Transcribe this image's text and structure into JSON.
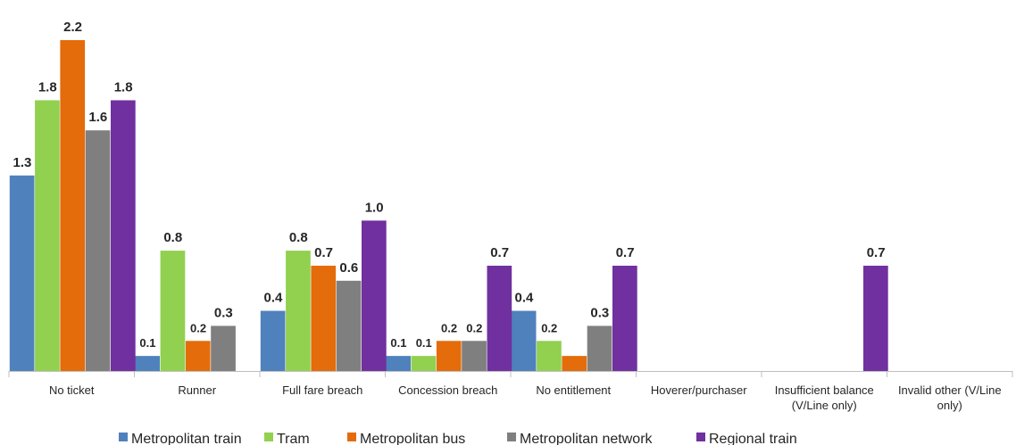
{
  "chart_data": {
    "type": "bar",
    "categories": [
      "No ticket",
      "Runner",
      "Full fare breach",
      "Concession breach",
      "No entitlement",
      "Hoverer/purchaser",
      "Insufficient balance (V/Line only)",
      "Invalid other (V/Line only)"
    ],
    "category_lines": [
      [
        "No ticket"
      ],
      [
        "Runner"
      ],
      [
        "Full fare breach"
      ],
      [
        "Concession breach"
      ],
      [
        "No entitlement"
      ],
      [
        "Hoverer/purchaser"
      ],
      [
        "Insufficient balance",
        "(V/Line only)"
      ],
      [
        "Invalid other (V/Line",
        "only)"
      ]
    ],
    "series": [
      {
        "name": "Metropolitan train",
        "color": "#4F81BD",
        "values": [
          1.3,
          0.1,
          0.4,
          0.1,
          0.4,
          null,
          null,
          null
        ]
      },
      {
        "name": "Tram",
        "color": "#92D050",
        "values": [
          1.8,
          0.8,
          0.8,
          0.1,
          0.2,
          null,
          null,
          null
        ]
      },
      {
        "name": "Metropolitan bus",
        "color": "#E46C0A",
        "values": [
          2.2,
          0.2,
          0.7,
          0.2,
          0.1,
          null,
          null,
          null
        ]
      },
      {
        "name": "Metropolitan network",
        "color": "#7F7F7F",
        "values": [
          1.6,
          0.3,
          0.6,
          0.2,
          0.3,
          null,
          null,
          null
        ]
      },
      {
        "name": "Regional train",
        "color": "#7030A0",
        "values": [
          1.8,
          null,
          1.0,
          0.7,
          0.7,
          null,
          0.7,
          null
        ]
      }
    ],
    "labels": [
      [
        "1.3",
        "0.1",
        "0.4",
        "0.1",
        "0.4",
        "",
        "",
        ""
      ],
      [
        "1.8",
        "0.8",
        "0.8",
        "0.1",
        "0.2",
        "",
        "",
        ""
      ],
      [
        "2.2",
        "0.2",
        "0.7",
        "0.2",
        "",
        "",
        "",
        ""
      ],
      [
        "1.6",
        "0.3",
        "0.6",
        "0.2",
        "0.3",
        "",
        "",
        ""
      ],
      [
        "1.8",
        "",
        "1.0",
        "0.7",
        "0.7",
        "",
        "0.7",
        ""
      ]
    ],
    "ylim": [
      0,
      2.2
    ],
    "grid": false,
    "legend_position": "bottom",
    "title": "",
    "xlabel": "",
    "ylabel": ""
  }
}
